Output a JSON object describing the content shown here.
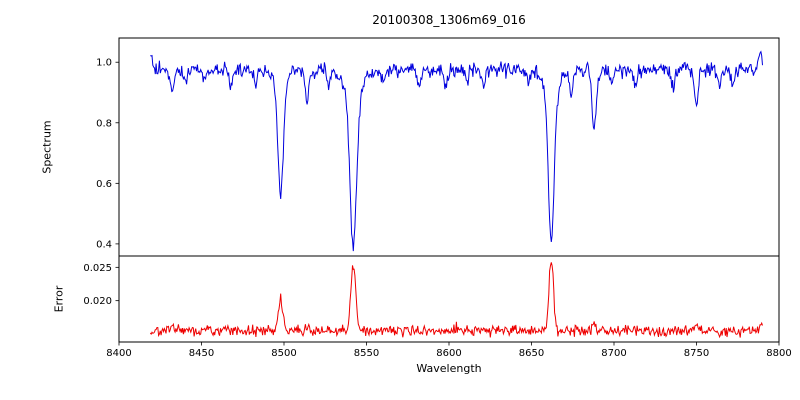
{
  "figure": {
    "background": "#ffffff",
    "axes_color": "#000000"
  },
  "chart_data": {
    "type": "line",
    "title": "20100308_1306m69_016",
    "xlabel": "Wavelength",
    "x_range": [
      8400,
      8800
    ],
    "x_ticks": [
      8400,
      8450,
      8500,
      8550,
      8600,
      8650,
      8700,
      8750,
      8800
    ],
    "x_data_range": [
      8419,
      8790
    ],
    "sample_step": 0.5,
    "noise_seed": 20100308,
    "legend": "none",
    "grid": false,
    "main_absorption_centers": [
      8498,
      8542,
      8662
    ],
    "subplots": [
      {
        "name": "spectrum",
        "ylabel": "Spectrum",
        "color": "#0000dd",
        "ylim": [
          0.36,
          1.08
        ],
        "y_ticks": [
          0.4,
          0.6,
          0.8,
          1.0
        ],
        "y_tick_labels": [
          "0.4",
          "0.6",
          "0.8",
          "1.0"
        ],
        "continuum": 0.975,
        "noise_amplitude": 0.035,
        "absorption_lines": [
          {
            "center": 8419.5,
            "depth": -0.03,
            "sigma": 1.0
          },
          {
            "center": 8432,
            "depth": 0.075,
            "sigma": 1.2
          },
          {
            "center": 8440,
            "depth": 0.04,
            "sigma": 1.0
          },
          {
            "center": 8452,
            "depth": 0.04,
            "sigma": 0.9
          },
          {
            "center": 8468,
            "depth": 0.055,
            "sigma": 1.0
          },
          {
            "center": 8483,
            "depth": 0.045,
            "sigma": 0.9
          },
          {
            "center": 8498,
            "depth": 0.355,
            "sigma": 1.6
          },
          {
            "center": 8498,
            "depth": 0.05,
            "sigma": 4.0
          },
          {
            "center": 8514,
            "depth": 0.09,
            "sigma": 1.2
          },
          {
            "center": 8527,
            "depth": 0.05,
            "sigma": 1.0
          },
          {
            "center": 8542,
            "depth": 0.51,
            "sigma": 2.0
          },
          {
            "center": 8542,
            "depth": 0.07,
            "sigma": 6.0
          },
          {
            "center": 8560,
            "depth": 0.04,
            "sigma": 0.9
          },
          {
            "center": 8582,
            "depth": 0.05,
            "sigma": 1.0
          },
          {
            "center": 8598,
            "depth": 0.055,
            "sigma": 1.0
          },
          {
            "center": 8611,
            "depth": 0.04,
            "sigma": 0.9
          },
          {
            "center": 8621,
            "depth": 0.06,
            "sigma": 1.0
          },
          {
            "center": 8648,
            "depth": 0.045,
            "sigma": 0.9
          },
          {
            "center": 8662,
            "depth": 0.5,
            "sigma": 1.8
          },
          {
            "center": 8662,
            "depth": 0.06,
            "sigma": 5.0
          },
          {
            "center": 8674,
            "depth": 0.08,
            "sigma": 1.0
          },
          {
            "center": 8688,
            "depth": 0.19,
            "sigma": 1.3
          },
          {
            "center": 8699,
            "depth": 0.05,
            "sigma": 1.0
          },
          {
            "center": 8713,
            "depth": 0.06,
            "sigma": 1.0
          },
          {
            "center": 8736,
            "depth": 0.055,
            "sigma": 1.0
          },
          {
            "center": 8750,
            "depth": 0.115,
            "sigma": 1.2
          },
          {
            "center": 8764,
            "depth": 0.045,
            "sigma": 0.9
          },
          {
            "center": 8772,
            "depth": 0.055,
            "sigma": 1.0
          },
          {
            "center": 8788.5,
            "depth": -0.06,
            "sigma": 1.2
          }
        ]
      },
      {
        "name": "error",
        "ylabel": "Error",
        "color": "#ee0000",
        "ylim": [
          0.0138,
          0.0267
        ],
        "y_ticks": [
          0.02,
          0.025
        ],
        "y_tick_labels": [
          "0.020",
          "0.025"
        ],
        "baseline": 0.0155,
        "noise_amplitude": 0.0012,
        "peaks": [
          {
            "center": 8432,
            "height": 0.001,
            "sigma": 1.0
          },
          {
            "center": 8455,
            "height": 0.0008,
            "sigma": 0.8
          },
          {
            "center": 8498,
            "height": 0.005,
            "sigma": 1.3
          },
          {
            "center": 8514,
            "height": 0.0008,
            "sigma": 0.9
          },
          {
            "center": 8542,
            "height": 0.0096,
            "sigma": 1.5
          },
          {
            "center": 8570,
            "height": 0.0006,
            "sigma": 0.8
          },
          {
            "center": 8605,
            "height": 0.0005,
            "sigma": 0.8
          },
          {
            "center": 8630,
            "height": 0.0006,
            "sigma": 0.8
          },
          {
            "center": 8662,
            "height": 0.0102,
            "sigma": 1.4
          },
          {
            "center": 8688,
            "height": 0.0011,
            "sigma": 1.0
          },
          {
            "center": 8720,
            "height": 0.0005,
            "sigma": 0.8
          },
          {
            "center": 8750,
            "height": 0.0007,
            "sigma": 1.0
          },
          {
            "center": 8789,
            "height": 0.0012,
            "sigma": 0.9
          }
        ]
      }
    ]
  }
}
